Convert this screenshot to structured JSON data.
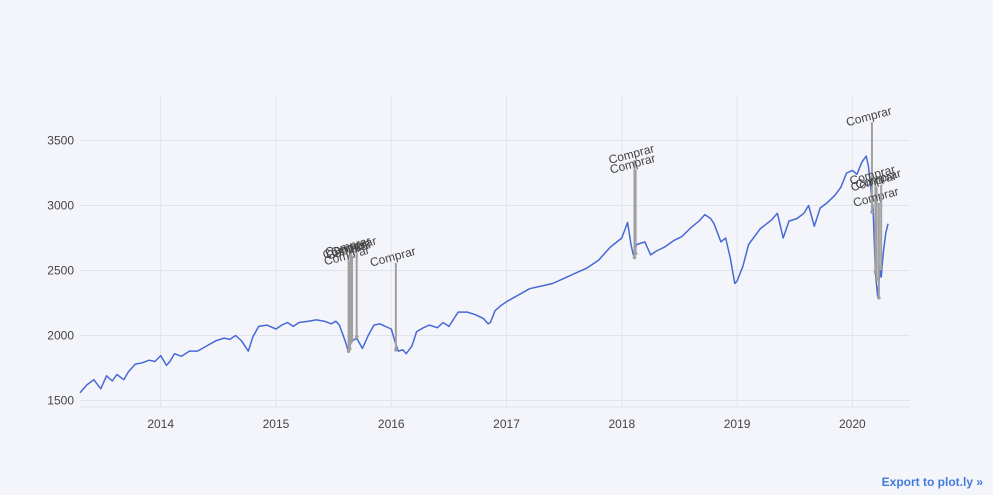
{
  "export_link": {
    "label": "Export to plot.ly »"
  },
  "chart_data": {
    "type": "line",
    "title": "",
    "xlabel": "",
    "ylabel": "",
    "xlim": [
      2013.3,
      2020.5
    ],
    "ylim": [
      1450,
      3850
    ],
    "x_ticks": [
      2014,
      2015,
      2016,
      2017,
      2018,
      2019,
      2020
    ],
    "y_ticks": [
      1500,
      2000,
      2500,
      3000,
      3500
    ],
    "grid": true,
    "colors": {
      "line": "#4669d6",
      "annotation_line": "#a0a0a0",
      "grid": "#e1e4ec",
      "background": "#f4f5fa"
    },
    "series": [
      {
        "values_x": [
          2013.3,
          2013.36,
          2013.42,
          2013.48,
          2013.53,
          2013.58,
          2013.62,
          2013.68,
          2013.72,
          2013.78,
          2013.84,
          2013.9,
          2013.95,
          2014.0,
          2014.05,
          2014.08,
          2014.12,
          2014.18,
          2014.25,
          2014.32,
          2014.4,
          2014.48,
          2014.55,
          2014.6,
          2014.65,
          2014.7,
          2014.76,
          2014.8,
          2014.85,
          2014.92,
          2015.0,
          2015.05,
          2015.1,
          2015.15,
          2015.2,
          2015.28,
          2015.35,
          2015.42,
          2015.48,
          2015.52,
          2015.55,
          2015.6,
          2015.63,
          2015.65,
          2015.7,
          2015.75,
          2015.8,
          2015.85,
          2015.9,
          2015.95,
          2016.0,
          2016.03,
          2016.06,
          2016.1,
          2016.13,
          2016.18,
          2016.22,
          2016.28,
          2016.33,
          2016.4,
          2016.45,
          2016.5,
          2016.58,
          2016.66,
          2016.73,
          2016.8,
          2016.84,
          2016.86,
          2016.9,
          2016.95,
          2017.0,
          2017.1,
          2017.2,
          2017.3,
          2017.4,
          2017.5,
          2017.6,
          2017.7,
          2017.8,
          2017.9,
          2018.0,
          2018.05,
          2018.08,
          2018.1,
          2018.13,
          2018.2,
          2018.25,
          2018.3,
          2018.37,
          2018.45,
          2018.52,
          2018.6,
          2018.67,
          2018.72,
          2018.77,
          2018.8,
          2018.83,
          2018.86,
          2018.9,
          2018.94,
          2018.98,
          2019.0,
          2019.05,
          2019.1,
          2019.2,
          2019.3,
          2019.35,
          2019.4,
          2019.45,
          2019.52,
          2019.58,
          2019.62,
          2019.67,
          2019.72,
          2019.78,
          2019.85,
          2019.9,
          2019.95,
          2020.0,
          2020.04,
          2020.08,
          2020.12,
          2020.14,
          2020.16,
          2020.18,
          2020.2,
          2020.22,
          2020.24,
          2020.25,
          2020.27,
          2020.29,
          2020.31
        ],
        "values_y": [
          1560,
          1620,
          1660,
          1590,
          1690,
          1650,
          1700,
          1660,
          1720,
          1780,
          1790,
          1810,
          1800,
          1845,
          1770,
          1800,
          1860,
          1840,
          1880,
          1880,
          1920,
          1960,
          1980,
          1970,
          2000,
          1960,
          1880,
          1990,
          2070,
          2080,
          2050,
          2080,
          2100,
          2070,
          2100,
          2110,
          2120,
          2110,
          2090,
          2110,
          2080,
          1960,
          1870,
          1950,
          1980,
          1900,
          2000,
          2080,
          2090,
          2070,
          2050,
          1960,
          1880,
          1890,
          1860,
          1920,
          2030,
          2060,
          2080,
          2060,
          2100,
          2070,
          2180,
          2180,
          2160,
          2130,
          2090,
          2100,
          2190,
          2230,
          2260,
          2310,
          2360,
          2380,
          2400,
          2440,
          2480,
          2520,
          2580,
          2680,
          2750,
          2870,
          2700,
          2620,
          2700,
          2720,
          2620,
          2650,
          2680,
          2730,
          2760,
          2830,
          2880,
          2930,
          2900,
          2860,
          2790,
          2720,
          2750,
          2600,
          2400,
          2420,
          2530,
          2700,
          2820,
          2890,
          2940,
          2750,
          2880,
          2900,
          2940,
          3000,
          2840,
          2980,
          3020,
          3080,
          3140,
          3250,
          3270,
          3240,
          3330,
          3380,
          3300,
          3130,
          2970,
          2480,
          2300,
          2500,
          2450,
          2650,
          2790,
          2860
        ]
      }
    ],
    "annotations": [
      {
        "text": "Comprar",
        "x": 2015.63,
        "y_top": 2620,
        "y_bottom": 1880
      },
      {
        "text": "Comprar",
        "x": 2015.64,
        "y_top": 2570,
        "y_bottom": 1900
      },
      {
        "text": "Comprar",
        "x": 2015.65,
        "y_top": 2640,
        "y_bottom": 1950
      },
      {
        "text": "Comprar",
        "x": 2015.66,
        "y_top": 2615,
        "y_bottom": 1970
      },
      {
        "text": "Comprar",
        "x": 2015.7,
        "y_top": 2640,
        "y_bottom": 1990
      },
      {
        "text": "Comprar",
        "x": 2016.04,
        "y_top": 2560,
        "y_bottom": 1890
      },
      {
        "text": "Comprar",
        "x": 2018.11,
        "y_top": 3350,
        "y_bottom": 2600
      },
      {
        "text": "Comprar",
        "x": 2018.12,
        "y_top": 3275,
        "y_bottom": 2630
      },
      {
        "text": "Comprar",
        "x": 2020.17,
        "y_top": 3640,
        "y_bottom": 2950
      },
      {
        "text": "Comprar",
        "x": 2020.2,
        "y_top": 3190,
        "y_bottom": 2490
      },
      {
        "text": "Comprar",
        "x": 2020.21,
        "y_top": 3140,
        "y_bottom": 2430
      },
      {
        "text": "Comprar",
        "x": 2020.23,
        "y_top": 3020,
        "y_bottom": 2290
      },
      {
        "text": "Comprar",
        "x": 2020.25,
        "y_top": 3160,
        "y_bottom": 2520
      }
    ]
  }
}
